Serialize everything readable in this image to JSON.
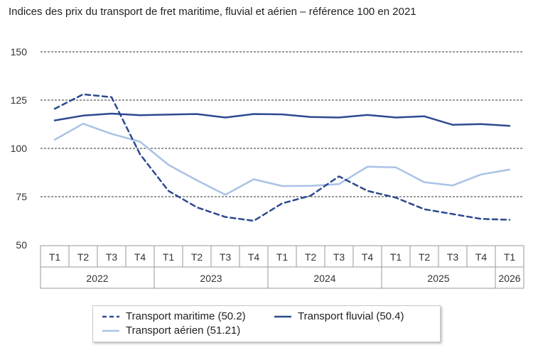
{
  "title": "Indices des prix du transport de fret maritime, fluvial et aérien – référence 100 en 2021",
  "colors": {
    "maritime": "#2c4a8f",
    "fluvial": "#2c4a8f",
    "aerien": "#a9c2e6",
    "grid": "#333333",
    "axis": "#999999"
  },
  "chart_data": {
    "type": "line",
    "title": "Indices des prix du transport de fret maritime, fluvial et aérien – référence 100 en 2021",
    "x": [
      "T1",
      "T2",
      "T3",
      "T4",
      "T1",
      "T2",
      "T3",
      "T4",
      "T1",
      "T2",
      "T3",
      "T4",
      "T1",
      "T2",
      "T3",
      "T4",
      "T1"
    ],
    "years": [
      {
        "label": "2022",
        "span": 4
      },
      {
        "label": "2023",
        "span": 4
      },
      {
        "label": "2024",
        "span": 4
      },
      {
        "label": "2025",
        "span": 4
      },
      {
        "label": "2026",
        "span": 1
      }
    ],
    "ylim": [
      50,
      150
    ],
    "yticks": [
      "50",
      "75",
      "100",
      "125",
      "150"
    ],
    "grid": true,
    "legend_position": "bottom",
    "series": [
      {
        "name": "Transport maritime (50.2)",
        "style": "dashed",
        "color": "#2c4a8f",
        "values": [
          120.5,
          128,
          126.5,
          97,
          78,
          69.5,
          64.5,
          62.5,
          71.5,
          75.5,
          85.5,
          78,
          74.5,
          68.5,
          66,
          63.5,
          63
        ]
      },
      {
        "name": "Transport fluvial (50.4)",
        "style": "solid",
        "color": "#2c4a8f",
        "values": [
          114.5,
          117,
          118,
          117.2,
          117.5,
          117.8,
          116,
          117.8,
          117.6,
          116.3,
          116,
          117.3,
          116,
          116.6,
          112.2,
          112.6,
          111.7
        ]
      },
      {
        "name": "Transport aérien (51.21)",
        "style": "solid",
        "color": "#a9c2e6",
        "values": [
          104.5,
          112.8,
          107.5,
          103.5,
          91.5,
          83.5,
          76,
          84,
          80.5,
          80.6,
          81.5,
          90.5,
          90.2,
          82.5,
          80.8,
          86.5,
          89
        ]
      }
    ]
  }
}
